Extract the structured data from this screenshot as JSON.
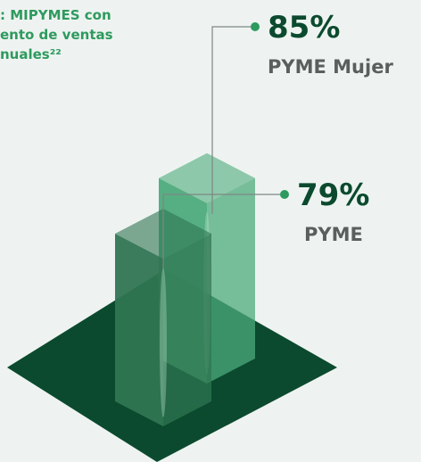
{
  "chart_data": {
    "type": "bar3d",
    "title_lines": [
      ": MIPYMES con",
      "ento de ventas",
      "nuales²²"
    ],
    "categories": [
      "PYME Mujer",
      "PYME"
    ],
    "values": [
      85,
      79
    ],
    "value_labels": [
      "85%",
      "79%"
    ],
    "colors": [
      "#4dab7c",
      "#2f7552"
    ]
  }
}
